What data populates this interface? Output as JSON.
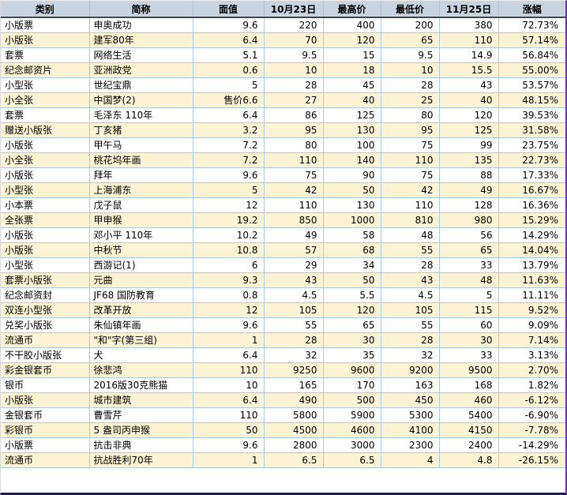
{
  "colors": {
    "header_bg": "#c8d4e0",
    "header_text": "#000000",
    "header_underline": "#454545",
    "row_bg": "#ffffff",
    "row_alt_bg": "#fcf3d4",
    "grid_line": "#adc9e2",
    "right_border": "#7030a0",
    "bottom_border": "#20204d",
    "left_border": "#d9d9d9",
    "top_border": "#ededed"
  },
  "chart_data": {
    "type": "table",
    "columns": [
      {
        "key": "category",
        "label": "类别",
        "align": "left"
      },
      {
        "key": "name",
        "label": "简称",
        "align": "left"
      },
      {
        "key": "face_value",
        "label": "面值",
        "align": "right"
      },
      {
        "key": "oct23",
        "label": "10月23日",
        "align": "right"
      },
      {
        "key": "high",
        "label": "最高价",
        "align": "right"
      },
      {
        "key": "low",
        "label": "最低价",
        "align": "right"
      },
      {
        "key": "nov25",
        "label": "11月25日",
        "align": "right"
      },
      {
        "key": "change",
        "label": "涨幅",
        "align": "right"
      }
    ],
    "rows": [
      [
        "小版票",
        "申奥成功",
        "9.6",
        "220",
        "400",
        "200",
        "380",
        "72.73%"
      ],
      [
        "小版张",
        "建军80年",
        "6.4",
        "70",
        "120",
        "65",
        "110",
        "57.14%"
      ],
      [
        "套票",
        "网络生活",
        "5.1",
        "9.5",
        "15",
        "9.5",
        "14.9",
        "56.84%"
      ],
      [
        "纪念邮资片",
        "亚洲政党",
        "0.6",
        "10",
        "18",
        "10",
        "15.5",
        "55.00%"
      ],
      [
        "小型张",
        "世纪宝鼎",
        "5",
        "28",
        "45",
        "28",
        "43",
        "53.57%"
      ],
      [
        "小全张",
        "中国梦(2)",
        "售价6.6",
        "27",
        "40",
        "25",
        "40",
        "48.15%"
      ],
      [
        "套票",
        "毛泽东 110年",
        "6.4",
        "86",
        "125",
        "80",
        "120",
        "39.53%"
      ],
      [
        "赠送小版张",
        "丁亥猪",
        "3.2",
        "95",
        "130",
        "95",
        "125",
        "31.58%"
      ],
      [
        "小版张",
        "甲午马",
        "7.2",
        "80",
        "100",
        "75",
        "99",
        "23.75%"
      ],
      [
        "小全张",
        "桃花坞年画",
        "7.2",
        "110",
        "140",
        "110",
        "135",
        "22.73%"
      ],
      [
        "小版张",
        "拜年",
        "9.6",
        "75",
        "90",
        "75",
        "88",
        "17.33%"
      ],
      [
        "小型张",
        "上海浦东",
        "5",
        "42",
        "50",
        "42",
        "49",
        "16.67%"
      ],
      [
        "小本票",
        "戊子鼠",
        "12",
        "110",
        "130",
        "110",
        "128",
        "16.36%"
      ],
      [
        "全张票",
        "甲申猴",
        "19.2",
        "850",
        "1000",
        "810",
        "980",
        "15.29%"
      ],
      [
        "小版张",
        "邓小平 110年",
        "10.2",
        "49",
        "58",
        "48",
        "56",
        "14.29%"
      ],
      [
        "小版张",
        "中秋节",
        "10.8",
        "57",
        "68",
        "55",
        "65",
        "14.04%"
      ],
      [
        "小型张",
        "西游记(1)",
        "6",
        "29",
        "34",
        "28",
        "33",
        "13.79%"
      ],
      [
        "套票小版张",
        "元曲",
        "9.3",
        "43",
        "50",
        "43",
        "48",
        "11.63%"
      ],
      [
        "纪念邮资封",
        "JF68 国防教育",
        "0.8",
        "4.5",
        "5.5",
        "4.5",
        "5",
        "11.11%"
      ],
      [
        "双连小型张",
        "改革开放",
        "12",
        "105",
        "120",
        "105",
        "115",
        "9.52%"
      ],
      [
        "兑奖小版张",
        "朱仙镇年画",
        "9.6",
        "55",
        "65",
        "55",
        "60",
        "9.09%"
      ],
      [
        "流通币",
        "\"和\"字(第三组)",
        "1",
        "28",
        "30",
        "28",
        "30",
        "7.14%"
      ],
      [
        "不干胶小版张",
        "犬",
        "6.4",
        "32",
        "35",
        "32",
        "33",
        "3.13%"
      ],
      [
        "彩金银套币",
        "徐悲鸿",
        "110",
        "9250",
        "9600",
        "9200",
        "9500",
        "2.70%"
      ],
      [
        "银币",
        "2016版30克熊猫",
        "10",
        "165",
        "170",
        "163",
        "168",
        "1.82%"
      ],
      [
        "小版张",
        "城市建筑",
        "6.4",
        "490",
        "500",
        "450",
        "460",
        "-6.12%"
      ],
      [
        "金银套币",
        "曹雪芹",
        "110",
        "5800",
        "5900",
        "5300",
        "5400",
        "-6.90%"
      ],
      [
        "彩银币",
        "5 盎司丙申猴",
        "50",
        "4500",
        "4600",
        "4100",
        "4150",
        "-7.78%"
      ],
      [
        "小版票",
        "抗击非典",
        "9.6",
        "2800",
        "3000",
        "2300",
        "2400",
        "-14.29%"
      ],
      [
        "流通币",
        "抗战胜利70年",
        "1",
        "6.5",
        "6.5",
        "4",
        "4.8",
        "-26.15%"
      ]
    ]
  }
}
